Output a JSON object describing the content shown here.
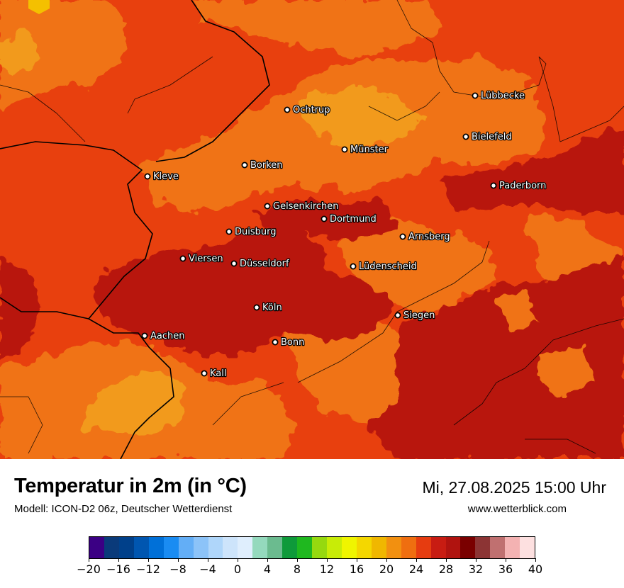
{
  "title": "Temperatur in 2m (in °C)",
  "model": "Modell: ICON-D2 06z, Deutscher Wetterdienst",
  "datetime": "Mi, 27.08.2025 15:00 Uhr",
  "website": "www.wetterblick.com",
  "cities": [
    {
      "name": "Lübbecke"
    },
    {
      "name": "Ochtrup"
    },
    {
      "name": "Bielefeld"
    },
    {
      "name": "Münster"
    },
    {
      "name": "Borken"
    },
    {
      "name": "Kleve"
    },
    {
      "name": "Paderborn"
    },
    {
      "name": "Gelsenkirchen"
    },
    {
      "name": "Dortmund"
    },
    {
      "name": "Duisburg"
    },
    {
      "name": "Arnsberg"
    },
    {
      "name": "Viersen"
    },
    {
      "name": "Düsseldorf"
    },
    {
      "name": "Lüdenscheid"
    },
    {
      "name": "Köln"
    },
    {
      "name": "Siegen"
    },
    {
      "name": "Aachen"
    },
    {
      "name": "Bonn"
    },
    {
      "name": "Kall"
    }
  ],
  "legend": {
    "colors": [
      "#3b0084",
      "#0a3a7a",
      "#00408a",
      "#0056b0",
      "#0070d8",
      "#1a8cf2",
      "#63aef6",
      "#8cc3f8",
      "#afd6fa",
      "#cde4fb",
      "#dfeefd",
      "#94d9bd",
      "#6bbb8f",
      "#0e9a3a",
      "#1fb81f",
      "#96d90f",
      "#c8ec07",
      "#f0f500",
      "#f4d700",
      "#f0b700",
      "#f29010",
      "#ef6e10",
      "#e63c10",
      "#c81c12",
      "#b0130f",
      "#7a0000",
      "#8c3434",
      "#c07070",
      "#f4b2b2",
      "#fde0e0"
    ],
    "ticks": [
      "−20",
      "−16",
      "−12",
      "−8",
      "−4",
      "0",
      "4",
      "8",
      "12",
      "16",
      "20",
      "24",
      "28",
      "32",
      "36",
      "40"
    ]
  },
  "map_colors": {
    "bg": "#e8400e",
    "orange": "#f07312",
    "dark": "#b8140e",
    "light": "#f29a1a",
    "yellow": "#f4c000"
  }
}
